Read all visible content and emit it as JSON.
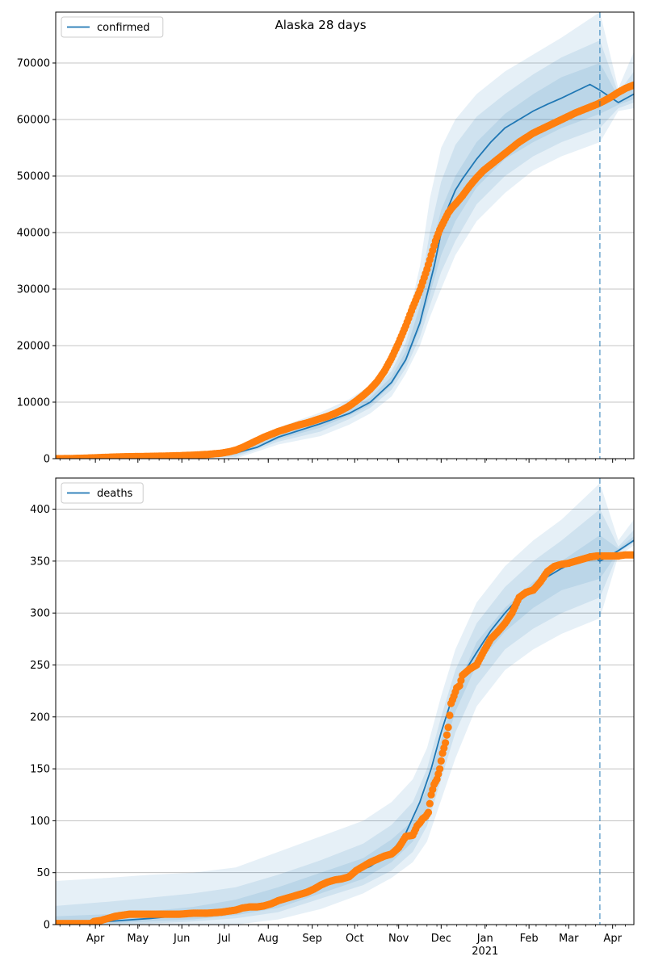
{
  "title": "Alaska 28 days",
  "colors": {
    "line": "#1f77b4",
    "band": "#1f77b4",
    "observed": "#ff7f0e",
    "grid": "#b0b0b0",
    "axis": "#000000"
  },
  "x_axis": {
    "month_labels": [
      "Apr",
      "May",
      "Jun",
      "Jul",
      "Aug",
      "Sep",
      "Oct",
      "Nov",
      "Dec",
      "Jan",
      "Feb",
      "Mar",
      "Apr"
    ],
    "month_days": [
      21,
      51,
      82,
      112,
      143,
      174,
      204,
      235,
      265,
      296,
      327,
      355,
      386
    ],
    "year_label": "2021",
    "year_under_index": 9,
    "xlim": [
      -7,
      401
    ],
    "day_zero": "2020-03-11",
    "forecast_start_day": 377
  },
  "chart_data": [
    {
      "type": "line",
      "legend": "confirmed",
      "legend_position": "top-left",
      "grid": "y",
      "ylim": [
        0,
        79000
      ],
      "yticks": [
        0,
        10000,
        20000,
        30000,
        40000,
        50000,
        60000,
        70000
      ],
      "series": [
        {
          "name": "confirmed",
          "x": [
            -7,
            30,
            60,
            90,
            120,
            135,
            150,
            165,
            180,
            200,
            215,
            230,
            240,
            250,
            255,
            260,
            265,
            270,
            275,
            280,
            290,
            300,
            310,
            320,
            330,
            340,
            350,
            360,
            370,
            377,
            390,
            401
          ],
          "y": [
            0,
            300,
            420,
            560,
            1000,
            2000,
            3800,
            5000,
            6200,
            8000,
            10000,
            13500,
            17500,
            24000,
            29000,
            34000,
            40000,
            44500,
            47500,
            49500,
            53000,
            56000,
            58500,
            60000,
            61500,
            62700,
            63800,
            65000,
            66200,
            65200,
            63000,
            64500
          ],
          "bands": [
            {
              "level": "outer",
              "x": [
                -7,
                120,
                150,
                180,
                200,
                215,
                230,
                240,
                250,
                257,
                265,
                275,
                290,
                310,
                330,
                350,
                377,
                390,
                401
              ],
              "lower": [
                0,
                0,
                2500,
                4000,
                6000,
                8000,
                11000,
                15000,
                20000,
                25000,
                30000,
                36000,
                42000,
                47000,
                51000,
                53500,
                56000,
                61500,
                62000
              ],
              "upper": [
                200,
                1500,
                5500,
                8200,
                10500,
                13000,
                17000,
                23000,
                34000,
                46000,
                55000,
                60000,
                64500,
                68500,
                71500,
                74500,
                79000,
                65500,
                72000
              ]
            },
            {
              "level": "mid",
              "x": [
                -7,
                120,
                150,
                180,
                200,
                215,
                230,
                240,
                250,
                257,
                265,
                275,
                290,
                310,
                330,
                350,
                377,
                390,
                401
              ],
              "lower": [
                0,
                300,
                3000,
                4800,
                7000,
                9000,
                12200,
                16000,
                21500,
                27000,
                33000,
                38500,
                45000,
                50000,
                53500,
                56000,
                58500,
                62000,
                63000
              ],
              "upper": [
                150,
                1200,
                4800,
                7400,
                9400,
                11700,
                15500,
                20500,
                30000,
                40000,
                49000,
                55500,
                60500,
                64500,
                68000,
                71000,
                74000,
                64700,
                68500
              ]
            },
            {
              "level": "inner",
              "x": [
                -7,
                120,
                150,
                180,
                200,
                215,
                230,
                240,
                250,
                257,
                265,
                275,
                290,
                310,
                330,
                350,
                377,
                390,
                401
              ],
              "lower": [
                0,
                600,
                3400,
                5500,
                7600,
                9500,
                13000,
                17000,
                23000,
                29000,
                36000,
                42000,
                48000,
                53000,
                56000,
                58500,
                61000,
                62600,
                63600
              ],
              "upper": [
                100,
                900,
                4200,
                6800,
                8600,
                10800,
                14500,
                19000,
                27000,
                36000,
                44000,
                50000,
                56000,
                61000,
                64500,
                67500,
                70000,
                64000,
                66000
              ]
            }
          ]
        },
        {
          "name": "observed confirmed",
          "x": [
            -7,
            0,
            10,
            20,
            30,
            40,
            50,
            60,
            70,
            80,
            90,
            100,
            110,
            115,
            120,
            125,
            130,
            135,
            140,
            145,
            150,
            155,
            160,
            165,
            170,
            175,
            180,
            185,
            190,
            195,
            200,
            205,
            210,
            215,
            220,
            225,
            230,
            235,
            240,
            245,
            250,
            255,
            258,
            261,
            264,
            267,
            270,
            273,
            276,
            280,
            285,
            290,
            295,
            300,
            305,
            310,
            315,
            320,
            325,
            330,
            335,
            340,
            345,
            350,
            355,
            360,
            365,
            370,
            375,
            380,
            385,
            390,
            395,
            401
          ],
          "y": [
            0,
            10,
            60,
            150,
            250,
            330,
            370,
            410,
            460,
            520,
            620,
            750,
            980,
            1200,
            1500,
            2000,
            2600,
            3200,
            3800,
            4300,
            4800,
            5200,
            5600,
            6000,
            6300,
            6700,
            7100,
            7500,
            8000,
            8600,
            9300,
            10200,
            11200,
            12300,
            13700,
            15500,
            17800,
            20500,
            23500,
            26800,
            29800,
            33500,
            36000,
            38500,
            40500,
            42000,
            43500,
            44500,
            45300,
            46500,
            48200,
            49700,
            51000,
            52000,
            53000,
            54000,
            55000,
            56000,
            56800,
            57600,
            58200,
            58800,
            59400,
            60000,
            60600,
            61200,
            61700,
            62200,
            62700,
            63300,
            64000,
            64800,
            65500,
            66100
          ]
        }
      ]
    },
    {
      "type": "line",
      "legend": "deaths",
      "legend_position": "top-left",
      "grid": "y",
      "ylim": [
        0,
        430
      ],
      "yticks": [
        0,
        50,
        100,
        150,
        200,
        250,
        300,
        350,
        400
      ],
      "series": [
        {
          "name": "deaths",
          "x": [
            -7,
            30,
            60,
            90,
            120,
            140,
            160,
            180,
            200,
            215,
            230,
            240,
            250,
            258,
            265,
            272,
            280,
            290,
            300,
            310,
            320,
            330,
            340,
            350,
            360,
            370,
            377,
            390,
            401
          ],
          "y": [
            1,
            3,
            6,
            10,
            15,
            20,
            28,
            38,
            48,
            56,
            70,
            88,
            118,
            150,
            185,
            215,
            240,
            262,
            283,
            300,
            315,
            326,
            335,
            343,
            350,
            357,
            350,
            360,
            370
          ],
          "bands": [
            {
              "level": "outer",
              "x": [
                -7,
                30,
                60,
                90,
                120,
                150,
                180,
                210,
                230,
                245,
                255,
                265,
                275,
                290,
                310,
                330,
                350,
                377,
                390,
                401
              ],
              "lower": [
                0,
                0,
                0,
                0,
                0,
                5,
                15,
                30,
                45,
                60,
                80,
                120,
                160,
                210,
                245,
                265,
                280,
                295,
                355,
                365
              ],
              "upper": [
                42,
                45,
                48,
                50,
                55,
                70,
                85,
                100,
                118,
                140,
                170,
                220,
                265,
                310,
                345,
                370,
                390,
                425,
                370,
                390
              ]
            },
            {
              "level": "mid",
              "x": [
                -7,
                30,
                60,
                90,
                120,
                150,
                180,
                210,
                230,
                245,
                255,
                265,
                275,
                290,
                310,
                330,
                350,
                377,
                390,
                401
              ],
              "lower": [
                0,
                0,
                1,
                3,
                6,
                12,
                25,
                38,
                52,
                70,
                95,
                140,
                185,
                230,
                265,
                285,
                300,
                315,
                358,
                368
              ],
              "upper": [
                18,
                22,
                26,
                30,
                36,
                48,
                62,
                78,
                96,
                118,
                150,
                200,
                245,
                290,
                325,
                350,
                370,
                400,
                364,
                380
              ]
            },
            {
              "level": "inner",
              "x": [
                -7,
                30,
                60,
                90,
                120,
                150,
                180,
                210,
                230,
                245,
                255,
                265,
                275,
                290,
                310,
                330,
                350,
                377,
                390,
                401
              ],
              "lower": [
                0,
                1,
                3,
                5,
                9,
                16,
                30,
                44,
                60,
                80,
                108,
                160,
                205,
                250,
                282,
                305,
                322,
                333,
                359,
                369
              ],
              "upper": [
                8,
                10,
                13,
                17,
                24,
                36,
                50,
                64,
                82,
                100,
                132,
                178,
                225,
                272,
                305,
                330,
                350,
                375,
                362,
                374
              ]
            }
          ]
        },
        {
          "name": "observed deaths",
          "x": [
            -7,
            0,
            10,
            18,
            20,
            25,
            30,
            35,
            40,
            45,
            50,
            60,
            70,
            80,
            90,
            100,
            110,
            115,
            120,
            125,
            130,
            135,
            140,
            145,
            150,
            155,
            160,
            165,
            170,
            175,
            180,
            185,
            190,
            195,
            200,
            205,
            210,
            215,
            220,
            225,
            230,
            235,
            240,
            245,
            248,
            250,
            252,
            254,
            256,
            258,
            260,
            262,
            264,
            266,
            268,
            270,
            272,
            274,
            276,
            278,
            280,
            285,
            290,
            295,
            300,
            305,
            310,
            315,
            320,
            325,
            330,
            335,
            340,
            345,
            350,
            355,
            360,
            365,
            370,
            375,
            380,
            385,
            390,
            395,
            401
          ],
          "y": [
            1,
            1,
            1,
            1,
            3,
            4,
            6,
            8,
            9,
            10,
            10,
            10,
            10,
            10,
            11,
            11,
            12,
            13,
            14,
            16,
            17,
            17,
            18,
            20,
            23,
            25,
            27,
            29,
            31,
            34,
            38,
            41,
            43,
            44,
            46,
            52,
            56,
            60,
            63,
            66,
            68,
            74,
            85,
            86,
            95,
            98,
            102,
            104,
            108,
            125,
            135,
            140,
            150,
            165,
            175,
            190,
            213,
            220,
            228,
            230,
            240,
            246,
            250,
            263,
            275,
            282,
            290,
            300,
            315,
            320,
            322,
            330,
            340,
            345,
            347,
            348,
            350,
            352,
            354,
            355,
            355,
            355,
            355,
            356,
            356
          ]
        }
      ]
    }
  ]
}
